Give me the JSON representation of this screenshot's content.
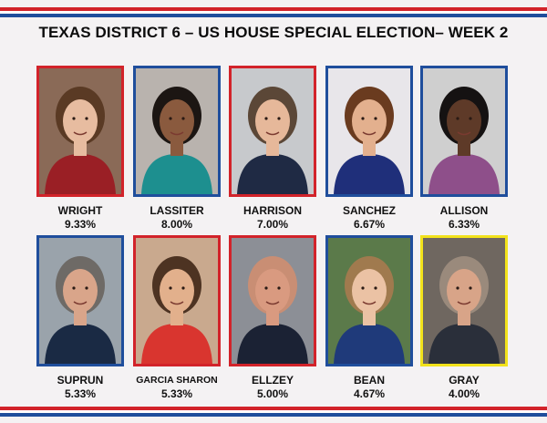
{
  "title": "TEXAS DISTRICT 6 – US HOUSE SPECIAL ELECTION– WEEK 2",
  "colors": {
    "red": "#d2232a",
    "blue": "#1f4e9c",
    "yellow": "#f2e21b"
  },
  "candidates": [
    {
      "name": "WRIGHT",
      "percent": "9.33%",
      "frame": "#d2232a",
      "bg": "#8a6a57",
      "hair": "#5a3a24",
      "skin": "#e7bca0",
      "shirt": "#9a1f25"
    },
    {
      "name": "LASSITER",
      "percent": "8.00%",
      "frame": "#1f4e9c",
      "bg": "#b9b3ae",
      "hair": "#1c1613",
      "skin": "#8a5a3e",
      "shirt": "#1d8f8f"
    },
    {
      "name": "HARRISON",
      "percent": "7.00%",
      "frame": "#d2232a",
      "bg": "#c7c9cc",
      "hair": "#5b4737",
      "skin": "#e6b89a",
      "shirt": "#1f2a44"
    },
    {
      "name": "SANCHEZ",
      "percent": "6.67%",
      "frame": "#1f4e9c",
      "bg": "#e8e6ea",
      "hair": "#6a3b1f",
      "skin": "#e3b08e",
      "shirt": "#1f2f7a"
    },
    {
      "name": "ALLISON",
      "percent": "6.33%",
      "frame": "#1f4e9c",
      "bg": "#cfcfcf",
      "hair": "#151212",
      "skin": "#5e3a28",
      "shirt": "#8e4f8a"
    },
    {
      "name": "SUPRUN",
      "percent": "5.33%",
      "frame": "#1f4e9c",
      "bg": "#9aa3ab",
      "hair": "#6e6a66",
      "skin": "#d9a58a",
      "shirt": "#1a2a44"
    },
    {
      "name": "GARCIA SHARON",
      "percent": "5.33%",
      "frame": "#d2232a",
      "bg": "#c9a98e",
      "hair": "#4d3322",
      "skin": "#e2b08c",
      "shirt": "#d9352f"
    },
    {
      "name": "ELLZEY",
      "percent": "5.00%",
      "frame": "#d2232a",
      "bg": "#8c8f96",
      "hair": "#c98e74",
      "skin": "#d99a80",
      "shirt": "#1b2234"
    },
    {
      "name": "BEAN",
      "percent": "4.67%",
      "frame": "#1f4e9c",
      "bg": "#5b7a4a",
      "hair": "#a07a4e",
      "skin": "#ebc2a4",
      "shirt": "#1f3a7a"
    },
    {
      "name": "GRAY",
      "percent": "4.00%",
      "frame": "#f2e21b",
      "bg": "#6f6760",
      "hair": "#9a8a7c",
      "skin": "#d8a488",
      "shirt": "#2a2f3a"
    }
  ]
}
